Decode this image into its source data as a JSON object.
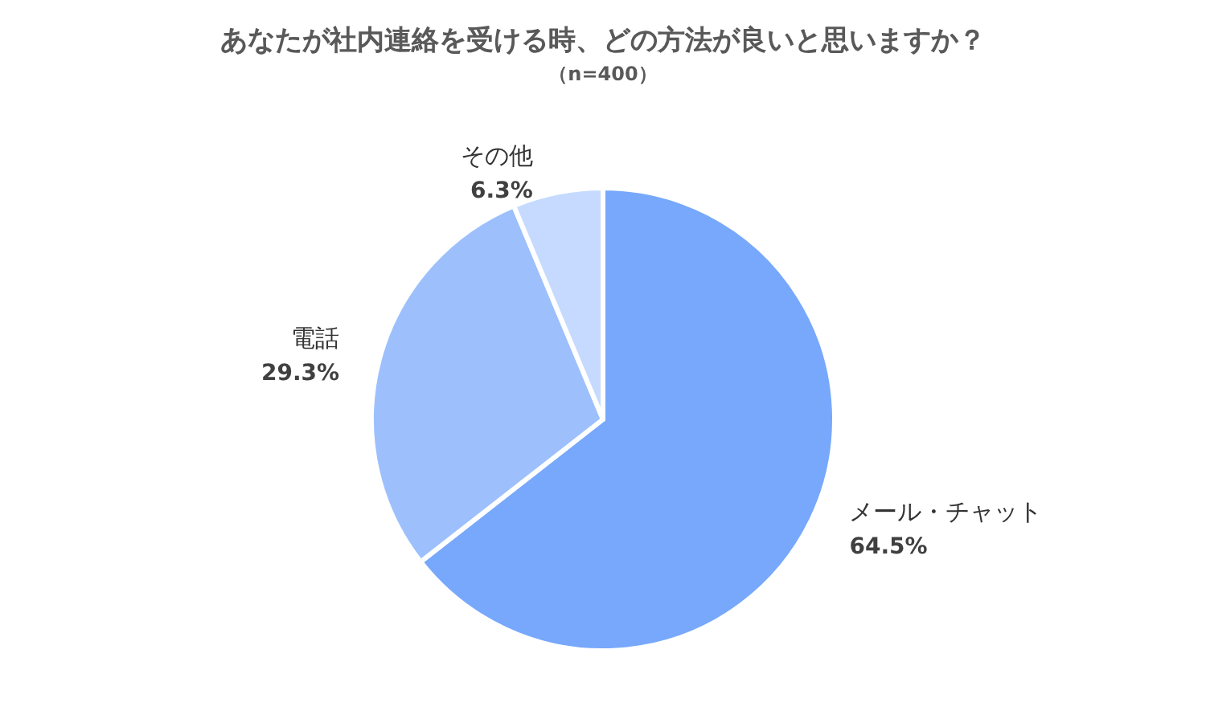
{
  "chart_data": {
    "type": "pie",
    "title": "あなたが社内連絡を受ける時、どの方法が良いと思いますか？",
    "subtitle": "（n=400）",
    "categories": [
      "メール・チャット",
      "電話",
      "その他"
    ],
    "values": [
      64.5,
      29.3,
      6.3
    ],
    "value_labels": [
      "64.5%",
      "29.3%",
      "6.3%"
    ],
    "colors": [
      "#77a8fc",
      "#9dc0fd",
      "#c5dafe"
    ],
    "legend": false
  }
}
